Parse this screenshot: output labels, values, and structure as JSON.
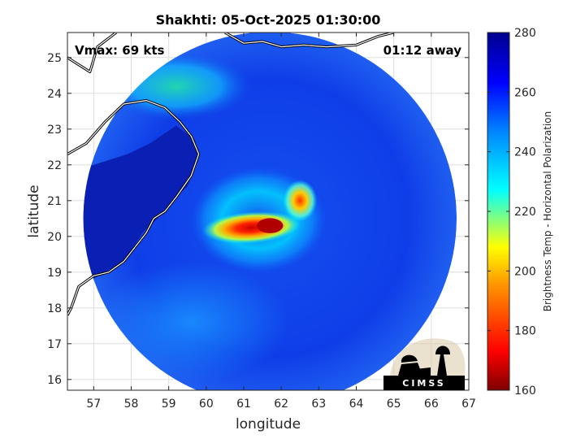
{
  "chart_data": {
    "type": "heatmap",
    "title": "Shakhti: 05-Oct-2025 01:30:00",
    "xlabel": "longitude",
    "ylabel": "latitude",
    "xlim": [
      56.3,
      67.0
    ],
    "ylim": [
      15.7,
      25.7
    ],
    "x_ticks": [
      "57",
      "58",
      "59",
      "60",
      "61",
      "62",
      "63",
      "64",
      "65",
      "66",
      "67"
    ],
    "y_ticks": [
      "16",
      "17",
      "18",
      "19",
      "20",
      "21",
      "22",
      "23",
      "24",
      "25"
    ],
    "grid": true,
    "colorbar": {
      "label": "Brightness Temp - Horizontal Polarization",
      "range": [
        160,
        280
      ],
      "ticks": [
        "160",
        "180",
        "200",
        "220",
        "240",
        "260",
        "280"
      ]
    },
    "annotations": {
      "vmax": "Vmax: 69 kts",
      "time_away": "01:12 away"
    },
    "swath": {
      "center_lon": 61.7,
      "center_lat": 20.5,
      "radius_deg": 5.35
    },
    "storm_center": {
      "lon": 61.7,
      "lat": 20.3,
      "min_tb": 165
    },
    "logo_text": "CIMSS"
  }
}
